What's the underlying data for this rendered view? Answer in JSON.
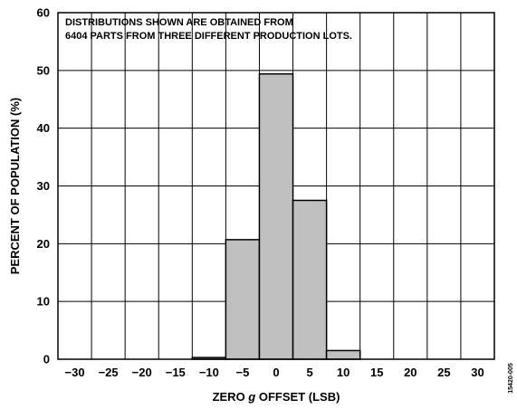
{
  "chart_data": {
    "type": "bar",
    "annotation": [
      "DISTRIBUTIONS SHOWN ARE OBTAINED FROM",
      "6404 PARTS FROM THREE DIFFERENT PRODUCTION LOTS."
    ],
    "xlabel_pre": "ZERO ",
    "xlabel_italic": "g",
    "xlabel_post": " OFFSET (LSB)",
    "ylabel": "PERCENT OF POPULATION (%)",
    "xlim": [
      -32.5,
      32.5
    ],
    "ylim": [
      0,
      60
    ],
    "x_ticks": [
      -30,
      -25,
      -20,
      -15,
      -10,
      -5,
      0,
      5,
      10,
      15,
      20,
      25,
      30
    ],
    "y_ticks": [
      0,
      10,
      20,
      30,
      40,
      50,
      60
    ],
    "bin_width": 5,
    "grid": true,
    "bar_color": "#c0c0c0",
    "bars": [
      {
        "x": -10,
        "value": 0.3
      },
      {
        "x": -5,
        "value": 20.7
      },
      {
        "x": 0,
        "value": 49.4
      },
      {
        "x": 5,
        "value": 27.5
      },
      {
        "x": 10,
        "value": 1.5
      }
    ],
    "figure_id": "15420-005"
  }
}
